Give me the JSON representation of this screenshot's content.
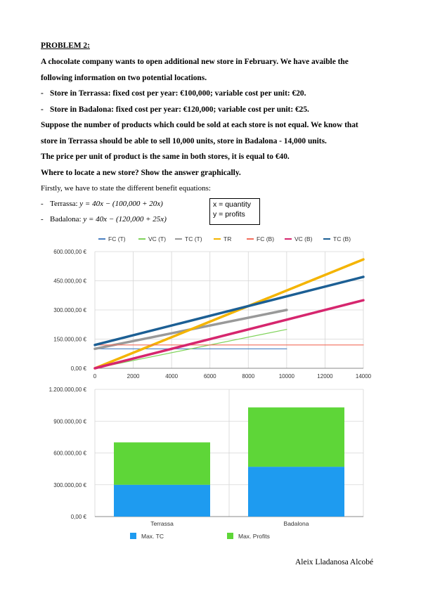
{
  "text": {
    "heading": "PROBLEM 2:",
    "para1_line1": "A chocolate company wants to open additional new store in February. We have avaible the",
    "para1_line2": "following information on two potential locations.",
    "bullet1": "Store in Terrassa: fixed cost per year: €100,000; variable cost per unit: €20.",
    "bullet2": "Store in Badalona: fixed cost per year: €120,000; variable cost per unit: €25.",
    "para2_line1": "Suppose the number of products which could be sold at each store is not equal. We know that",
    "para2_line2": "store in Terrassa should be able to sell 10,000 units, store in Badalona - 14,000 units.",
    "para3": "The price per unit of product is the same in both stores, it is equal to €40.",
    "para4": "Where to locate a new store? Show the answer graphically.",
    "para5": "Firstly, we have to state the different benefit equations:",
    "eq1_label": "Terrassa:",
    "eq1": "y = 40x − (100,000 + 20x)",
    "eq2_label": "Badalona:",
    "eq2": "y = 40x − (120,000 + 25x)",
    "box_line1": "x = quantity",
    "box_line2": "y = profits",
    "signature": "Aleix  Lladanosa Alcobé"
  },
  "colors": {
    "fc_t": "#4a7fc1",
    "vc_t": "#7fd35a",
    "tc_t": "#999999",
    "tr": "#f4b400",
    "fc_b": "#f26d5b",
    "vc_b": "#d6266e",
    "tc_b": "#1c5f94",
    "max_tc": "#1e9bf0",
    "max_profits": "#5ed638"
  },
  "chart_data": [
    {
      "type": "line",
      "x": [
        0,
        10000,
        14000
      ],
      "xlim": [
        0,
        14000
      ],
      "x_ticks": [
        "0",
        "2000",
        "4000",
        "6000",
        "8000",
        "10000",
        "12000",
        "14000"
      ],
      "ylim": [
        0,
        600000
      ],
      "y_ticks": [
        "0,00 €",
        "150.000,00 €",
        "300.000,00 €",
        "450.000,00 €",
        "600.000,00 €"
      ],
      "grid": true,
      "legend_position": "top",
      "series": [
        {
          "name": "FC (T)",
          "x": [
            0,
            10000
          ],
          "values": [
            100000,
            100000
          ]
        },
        {
          "name": "VC (T)",
          "x": [
            0,
            10000
          ],
          "values": [
            0,
            200000
          ]
        },
        {
          "name": "TC (T)",
          "x": [
            0,
            10000
          ],
          "values": [
            100000,
            300000
          ]
        },
        {
          "name": "TR",
          "x": [
            0,
            14000
          ],
          "values": [
            0,
            560000
          ]
        },
        {
          "name": "FC (B)",
          "x": [
            0,
            14000
          ],
          "values": [
            120000,
            120000
          ]
        },
        {
          "name": "VC (B)",
          "x": [
            0,
            14000
          ],
          "values": [
            0,
            350000
          ]
        },
        {
          "name": "TC (B)",
          "x": [
            0,
            14000
          ],
          "values": [
            120000,
            470000
          ]
        }
      ]
    },
    {
      "type": "bar",
      "stacked": true,
      "categories": [
        "Terrassa",
        "Badalona"
      ],
      "ylim": [
        0,
        1200000
      ],
      "y_ticks": [
        "0,00 €",
        "300.000,00 €",
        "600.000,00 €",
        "900.000,00 €",
        "1.200.000,00 €"
      ],
      "grid": true,
      "legend_position": "bottom",
      "series": [
        {
          "name": "Max. TC",
          "values": [
            300000,
            470000
          ]
        },
        {
          "name": "Max. Profits",
          "values": [
            400000,
            560000
          ]
        }
      ]
    }
  ]
}
